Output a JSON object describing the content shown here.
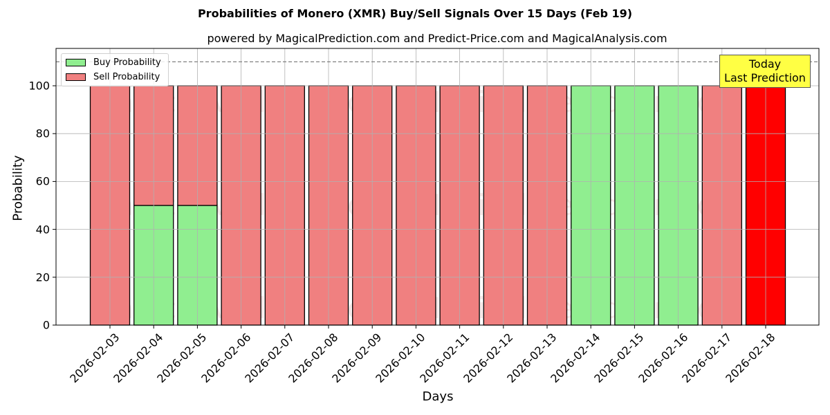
{
  "chart_data": {
    "type": "bar",
    "stacked": true,
    "title": "Probabilities of Monero (XMR) Buy/Sell Signals Over 15 Days (Feb 19)",
    "subtitle": "powered by MagicalPrediction.com and Predict-Price.com and MagicalAnalysis.com",
    "xlabel": "Days",
    "ylabel": "Probability",
    "ylim": [
      0,
      115
    ],
    "yticks": [
      0,
      20,
      40,
      60,
      80,
      100
    ],
    "grid": true,
    "legend_position": "upper left",
    "categories": [
      "2026-02-03",
      "2026-02-04",
      "2026-02-05",
      "2026-02-06",
      "2026-02-07",
      "2026-02-08",
      "2026-02-09",
      "2026-02-10",
      "2026-02-11",
      "2026-02-12",
      "2026-02-13",
      "2026-02-14",
      "2026-02-15",
      "2026-02-16",
      "2026-02-17",
      "2026-02-18"
    ],
    "series": [
      {
        "name": "Buy Probability",
        "color": "#90EE90",
        "values": [
          0,
          50,
          50,
          0,
          0,
          0,
          0,
          0,
          0,
          0,
          0,
          100,
          100,
          100,
          0,
          0
        ]
      },
      {
        "name": "Sell Probability",
        "color": "#F08080",
        "values": [
          100,
          50,
          50,
          100,
          100,
          100,
          100,
          100,
          100,
          100,
          100,
          0,
          0,
          0,
          100,
          100
        ]
      }
    ],
    "highlight": {
      "index": 15,
      "color": "#FF0000"
    },
    "reference_line": {
      "y": 110,
      "style": "dashed",
      "color": "#808080"
    },
    "annotation": {
      "text": [
        "Today",
        "Last Prediction"
      ],
      "background": "#FFFF44"
    },
    "watermarks": [
      "MagicalAnalysis.com",
      "MagicalPrediction.com"
    ]
  },
  "legend": {
    "buy_label": "Buy Probability",
    "sell_label": "Sell Probability"
  },
  "annotation": {
    "line1": "Today",
    "line2": "Last Prediction"
  }
}
